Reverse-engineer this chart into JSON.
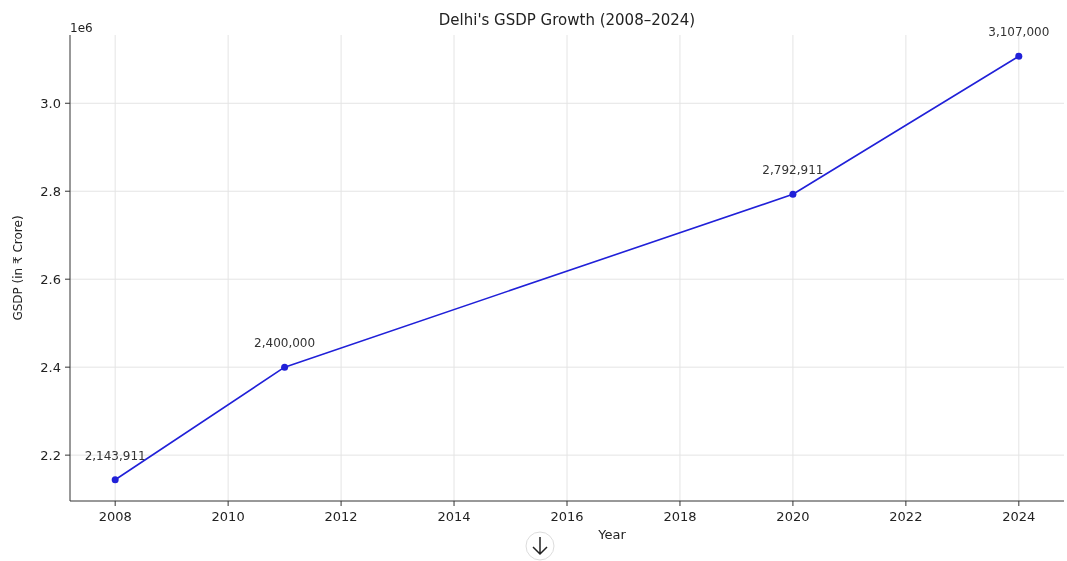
{
  "chart_data": {
    "type": "line",
    "title": "Delhi's GSDP Growth (2008–2024)",
    "xlabel": "Year",
    "ylabel": "GSDP (in ₹ Crore)",
    "x": [
      2008,
      2011,
      2020,
      2024
    ],
    "series": [
      {
        "color": "#2020d8",
        "values": [
          2.144,
          2.4,
          2.793,
          3.107
        ]
      }
    ],
    "xlim": [
      2007.2,
      2024.8
    ],
    "xticks": [
      2008,
      2010,
      2012,
      2014,
      2016,
      2018,
      2020,
      2022,
      2024
    ],
    "ylim": [
      2.0957,
      3.1552
    ],
    "yticks": [
      2.2,
      2.4,
      2.6,
      2.8,
      {
        "value": 3,
        "label": "3.0"
      }
    ],
    "annotations": [
      "1e6",
      {
        "text": "2,143,911",
        "x": 2008,
        "y": 2.144
      },
      {
        "text": "2,400,000",
        "x": 2011,
        "y": 2.4
      },
      {
        "text": "2,792,911",
        "x": 2020,
        "y": 2.793
      },
      {
        "text": "3,107,000",
        "x": 2024,
        "y": 3.107
      }
    ],
    "grid": true,
    "marker": "circle",
    "line_style": "solid"
  }
}
